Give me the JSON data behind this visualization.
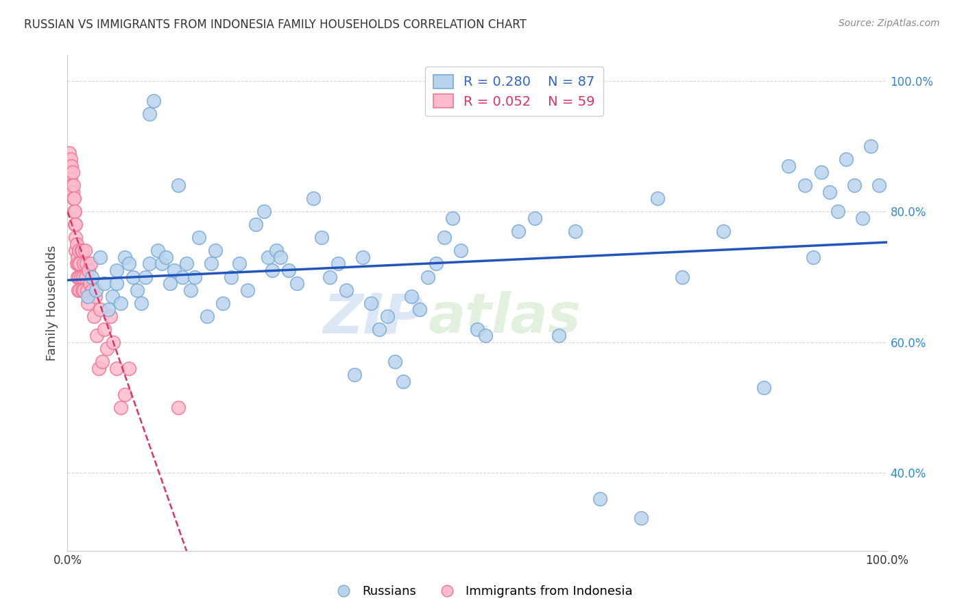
{
  "title": "RUSSIAN VS IMMIGRANTS FROM INDONESIA FAMILY HOUSEHOLDS CORRELATION CHART",
  "source": "Source: ZipAtlas.com",
  "ylabel": "Family Households",
  "ytick_labels": [
    "100.0%",
    "80.0%",
    "60.0%",
    "40.0%"
  ],
  "ytick_positions": [
    1.0,
    0.8,
    0.6,
    0.4
  ],
  "watermark_zip": "ZIP",
  "watermark_atlas": "atlas",
  "russians_R": 0.28,
  "indonesia_R": 0.052,
  "background_color": "#ffffff",
  "grid_color": "#cccccc",
  "dot_color_russian": "#bad4ee",
  "dot_edge_color_russian": "#7aaad4",
  "dot_color_indonesia": "#ffbbcc",
  "dot_edge_color_indonesia": "#ee7799",
  "line_color_russian": "#2255bb",
  "line_color_indonesia": "#dd3366",
  "russians_x": [
    0.025,
    0.03,
    0.035,
    0.04,
    0.045,
    0.05,
    0.055,
    0.06,
    0.06,
    0.065,
    0.07,
    0.075,
    0.08,
    0.085,
    0.09,
    0.095,
    0.1,
    0.1,
    0.105,
    0.11,
    0.115,
    0.12,
    0.125,
    0.13,
    0.135,
    0.14,
    0.145,
    0.15,
    0.155,
    0.16,
    0.17,
    0.175,
    0.18,
    0.19,
    0.2,
    0.21,
    0.22,
    0.23,
    0.24,
    0.245,
    0.25,
    0.255,
    0.26,
    0.27,
    0.28,
    0.3,
    0.31,
    0.32,
    0.33,
    0.34,
    0.35,
    0.36,
    0.37,
    0.38,
    0.39,
    0.4,
    0.41,
    0.42,
    0.43,
    0.44,
    0.45,
    0.46,
    0.47,
    0.48,
    0.5,
    0.51,
    0.55,
    0.57,
    0.6,
    0.62,
    0.65,
    0.7,
    0.72,
    0.75,
    0.8,
    0.85,
    0.88,
    0.9,
    0.91,
    0.92,
    0.93,
    0.94,
    0.95,
    0.96,
    0.97,
    0.98,
    0.99
  ],
  "russians_y": [
    0.67,
    0.7,
    0.68,
    0.73,
    0.69,
    0.65,
    0.67,
    0.71,
    0.69,
    0.66,
    0.73,
    0.72,
    0.7,
    0.68,
    0.66,
    0.7,
    0.72,
    0.95,
    0.97,
    0.74,
    0.72,
    0.73,
    0.69,
    0.71,
    0.84,
    0.7,
    0.72,
    0.68,
    0.7,
    0.76,
    0.64,
    0.72,
    0.74,
    0.66,
    0.7,
    0.72,
    0.68,
    0.78,
    0.8,
    0.73,
    0.71,
    0.74,
    0.73,
    0.71,
    0.69,
    0.82,
    0.76,
    0.7,
    0.72,
    0.68,
    0.55,
    0.73,
    0.66,
    0.62,
    0.64,
    0.57,
    0.54,
    0.67,
    0.65,
    0.7,
    0.72,
    0.76,
    0.79,
    0.74,
    0.62,
    0.61,
    0.77,
    0.79,
    0.61,
    0.77,
    0.36,
    0.33,
    0.82,
    0.7,
    0.77,
    0.53,
    0.87,
    0.84,
    0.73,
    0.86,
    0.83,
    0.8,
    0.88,
    0.84,
    0.79,
    0.9,
    0.84
  ],
  "indonesia_x": [
    0.002,
    0.003,
    0.003,
    0.004,
    0.004,
    0.005,
    0.005,
    0.006,
    0.006,
    0.007,
    0.007,
    0.008,
    0.008,
    0.009,
    0.009,
    0.01,
    0.01,
    0.01,
    0.011,
    0.011,
    0.012,
    0.012,
    0.013,
    0.013,
    0.014,
    0.014,
    0.015,
    0.015,
    0.016,
    0.017,
    0.018,
    0.018,
    0.019,
    0.02,
    0.02,
    0.021,
    0.022,
    0.023,
    0.024,
    0.025,
    0.026,
    0.027,
    0.028,
    0.03,
    0.032,
    0.034,
    0.036,
    0.038,
    0.04,
    0.042,
    0.045,
    0.048,
    0.052,
    0.056,
    0.06,
    0.065,
    0.07,
    0.075,
    0.135
  ],
  "indonesia_y": [
    0.89,
    0.87,
    0.86,
    0.85,
    0.88,
    0.84,
    0.87,
    0.83,
    0.86,
    0.82,
    0.84,
    0.8,
    0.82,
    0.78,
    0.8,
    0.76,
    0.78,
    0.74,
    0.72,
    0.75,
    0.73,
    0.7,
    0.72,
    0.68,
    0.74,
    0.7,
    0.72,
    0.68,
    0.7,
    0.74,
    0.74,
    0.68,
    0.7,
    0.72,
    0.68,
    0.74,
    0.7,
    0.72,
    0.68,
    0.66,
    0.71,
    0.69,
    0.72,
    0.68,
    0.64,
    0.67,
    0.61,
    0.56,
    0.65,
    0.57,
    0.62,
    0.59,
    0.64,
    0.6,
    0.56,
    0.5,
    0.52,
    0.56,
    0.5
  ]
}
